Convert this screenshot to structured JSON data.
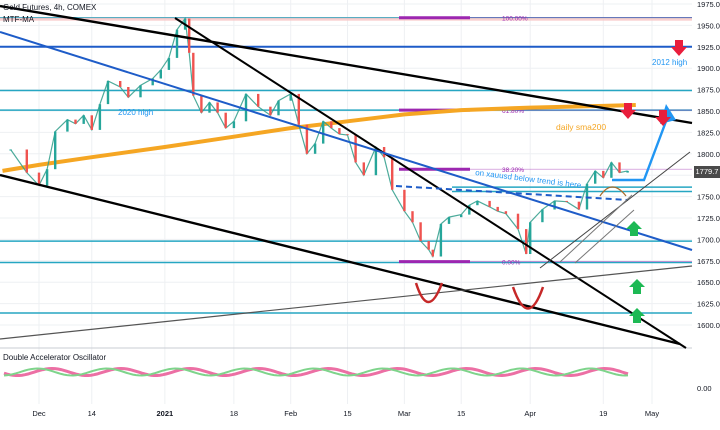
{
  "header": {
    "symbol_line": "Gold Futures, 4h, COMEX",
    "indicator": "MTF-MA"
  },
  "oscillator": {
    "label": "Double Accelerator Oscillator"
  },
  "last_price": "1779.7",
  "colors": {
    "axis_text": "#131722",
    "grid": "#eef0f3",
    "trend_black": "#000000",
    "trend_blue": "#1e5cc8",
    "fib_purple": "#9c27b0",
    "horizontal_cyan": "#26a6c2",
    "sma200_orange": "#f5a623",
    "ma_teal": "#2e9c8a",
    "ma_lavender": "#b39ddb",
    "up_candle": "#26a69a",
    "down_candle": "#ef5350",
    "arrow_red": "#e91e3c",
    "arrow_green": "#1db954",
    "annotation_blue": "#2196f3"
  },
  "chart_data": {
    "type": "line",
    "title": "Gold Futures, 4h, COMEX",
    "ylim": [
      1594,
      1982
    ],
    "y_ticks": [
      1975,
      1950,
      1925,
      1900,
      1875,
      1850,
      1825,
      1800,
      1775,
      1750,
      1725,
      1700,
      1675,
      1650,
      1625,
      1600
    ],
    "x_ticks": [
      {
        "label": "Dec",
        "date": "2020-12-01"
      },
      {
        "label": "14",
        "date": "2020-12-14"
      },
      {
        "label": "2021",
        "date": "2021-01-01"
      },
      {
        "label": "18",
        "date": "2021-01-18"
      },
      {
        "label": "Feb",
        "date": "2021-02-01"
      },
      {
        "label": "15",
        "date": "2021-02-15"
      },
      {
        "label": "Mar",
        "date": "2021-03-01"
      },
      {
        "label": "15",
        "date": "2021-03-15"
      },
      {
        "label": "Apr",
        "date": "2021-04-01"
      },
      {
        "label": "19",
        "date": "2021-04-19"
      },
      {
        "label": "May",
        "date": "2021-05-01"
      }
    ],
    "series": [
      {
        "name": "Gold Futures",
        "points": [
          [
            "2020-11-24",
            1805
          ],
          [
            "2020-11-28",
            1778
          ],
          [
            "2020-12-01",
            1763
          ],
          [
            "2020-12-03",
            1782
          ],
          [
            "2020-12-05",
            1826
          ],
          [
            "2020-12-08",
            1840
          ],
          [
            "2020-12-10",
            1835
          ],
          [
            "2020-12-12",
            1845
          ],
          [
            "2020-12-14",
            1828
          ],
          [
            "2020-12-16",
            1858
          ],
          [
            "2020-12-18",
            1885
          ],
          [
            "2020-12-21",
            1878
          ],
          [
            "2020-12-23",
            1866
          ],
          [
            "2020-12-26",
            1880
          ],
          [
            "2020-12-29",
            1888
          ],
          [
            "2020-12-31",
            1898
          ],
          [
            "2021-01-02",
            1912
          ],
          [
            "2021-01-04",
            1945
          ],
          [
            "2021-01-06",
            1958
          ],
          [
            "2021-01-07",
            1918
          ],
          [
            "2021-01-08",
            1868
          ],
          [
            "2021-01-10",
            1848
          ],
          [
            "2021-01-12",
            1860
          ],
          [
            "2021-01-14",
            1848
          ],
          [
            "2021-01-16",
            1830
          ],
          [
            "2021-01-18",
            1838
          ],
          [
            "2021-01-21",
            1870
          ],
          [
            "2021-01-24",
            1855
          ],
          [
            "2021-01-27",
            1845
          ],
          [
            "2021-01-29",
            1862
          ],
          [
            "2021-02-01",
            1870
          ],
          [
            "2021-02-03",
            1834
          ],
          [
            "2021-02-05",
            1800
          ],
          [
            "2021-02-07",
            1812
          ],
          [
            "2021-02-09",
            1838
          ],
          [
            "2021-02-11",
            1830
          ],
          [
            "2021-02-13",
            1823
          ],
          [
            "2021-02-15",
            1822
          ],
          [
            "2021-02-17",
            1790
          ],
          [
            "2021-02-19",
            1775
          ],
          [
            "2021-02-22",
            1808
          ],
          [
            "2021-02-24",
            1796
          ],
          [
            "2021-02-26",
            1758
          ],
          [
            "2021-03-01",
            1733
          ],
          [
            "2021-03-03",
            1720
          ],
          [
            "2021-03-05",
            1698
          ],
          [
            "2021-03-07",
            1688
          ],
          [
            "2021-03-08",
            1680
          ],
          [
            "2021-03-10",
            1718
          ],
          [
            "2021-03-12",
            1726
          ],
          [
            "2021-03-15",
            1729
          ],
          [
            "2021-03-17",
            1740
          ],
          [
            "2021-03-19",
            1745
          ],
          [
            "2021-03-22",
            1738
          ],
          [
            "2021-03-24",
            1733
          ],
          [
            "2021-03-26",
            1730
          ],
          [
            "2021-03-29",
            1712
          ],
          [
            "2021-03-31",
            1683
          ],
          [
            "2021-04-01",
            1720
          ],
          [
            "2021-04-04",
            1735
          ],
          [
            "2021-04-07",
            1745
          ],
          [
            "2021-04-10",
            1744
          ],
          [
            "2021-04-13",
            1735
          ],
          [
            "2021-04-15",
            1765
          ],
          [
            "2021-04-17",
            1780
          ],
          [
            "2021-04-19",
            1772
          ],
          [
            "2021-04-21",
            1790
          ],
          [
            "2021-04-23",
            1778
          ],
          [
            "2021-04-25",
            1780
          ]
        ]
      },
      {
        "name": "daily sma200",
        "points": [
          [
            "2020-11-22",
            1780
          ],
          [
            "2020-12-01",
            1787
          ],
          [
            "2020-12-14",
            1796
          ],
          [
            "2021-01-01",
            1808
          ],
          [
            "2021-01-18",
            1820
          ],
          [
            "2021-02-01",
            1830
          ],
          [
            "2021-02-15",
            1838
          ],
          [
            "2021-03-01",
            1846
          ],
          [
            "2021-03-15",
            1851
          ],
          [
            "2021-04-01",
            1854
          ],
          [
            "2021-04-19",
            1856
          ],
          [
            "2021-04-27",
            1857
          ]
        ]
      }
    ],
    "annotations": [
      {
        "text": "2012 high",
        "value": 1925
      },
      {
        "text": "2020 high"
      },
      {
        "text": "daily sma200"
      },
      {
        "text": "on xauusd below trend is here"
      }
    ],
    "fib_levels": [
      {
        "label": "100.00%",
        "value": 1959
      },
      {
        "label": "61.80%",
        "value": 1851
      },
      {
        "label": "38.20%",
        "value": 1782
      },
      {
        "label": "0.00%",
        "value": 1674
      }
    ],
    "horizontal_levels": [
      1959,
      1925,
      1874,
      1851,
      1761,
      1756,
      1698,
      1673,
      1614
    ],
    "grid": true
  }
}
